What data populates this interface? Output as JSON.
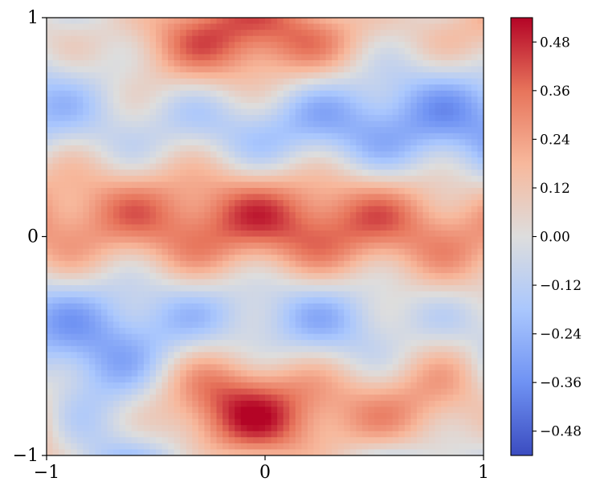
{
  "chart_data": {
    "type": "heatmap",
    "title": "",
    "xlabel": "",
    "ylabel": "",
    "xlim": [
      -1,
      1
    ],
    "ylim": [
      -1,
      1
    ],
    "x_ticks": [
      {
        "value": -1,
        "label": "−1"
      },
      {
        "value": 0,
        "label": "0"
      },
      {
        "value": 1,
        "label": "1"
      }
    ],
    "y_ticks": [
      {
        "value": -1,
        "label": "−1"
      },
      {
        "value": 0,
        "label": "0"
      },
      {
        "value": 1,
        "label": "1"
      }
    ],
    "colorbar": {
      "colormap": "coolwarm",
      "vmin": -0.54,
      "vmax": 0.54,
      "ticks": [
        {
          "value": -0.48,
          "label": "−0.48"
        },
        {
          "value": -0.36,
          "label": "−0.36"
        },
        {
          "value": -0.24,
          "label": "−0.24"
        },
        {
          "value": -0.12,
          "label": "−0.12"
        },
        {
          "value": 0.0,
          "label": "0.00"
        },
        {
          "value": 0.12,
          "label": "0.12"
        },
        {
          "value": 0.24,
          "label": "0.24"
        },
        {
          "value": 0.36,
          "label": "0.36"
        },
        {
          "value": 0.48,
          "label": "0.48"
        }
      ],
      "colors": [
        "#3b4cc0",
        "#6f92f3",
        "#aac7fd",
        "#dddddd",
        "#f7b89c",
        "#e7745b",
        "#b40426"
      ]
    },
    "grid": false,
    "legend": "none"
  }
}
